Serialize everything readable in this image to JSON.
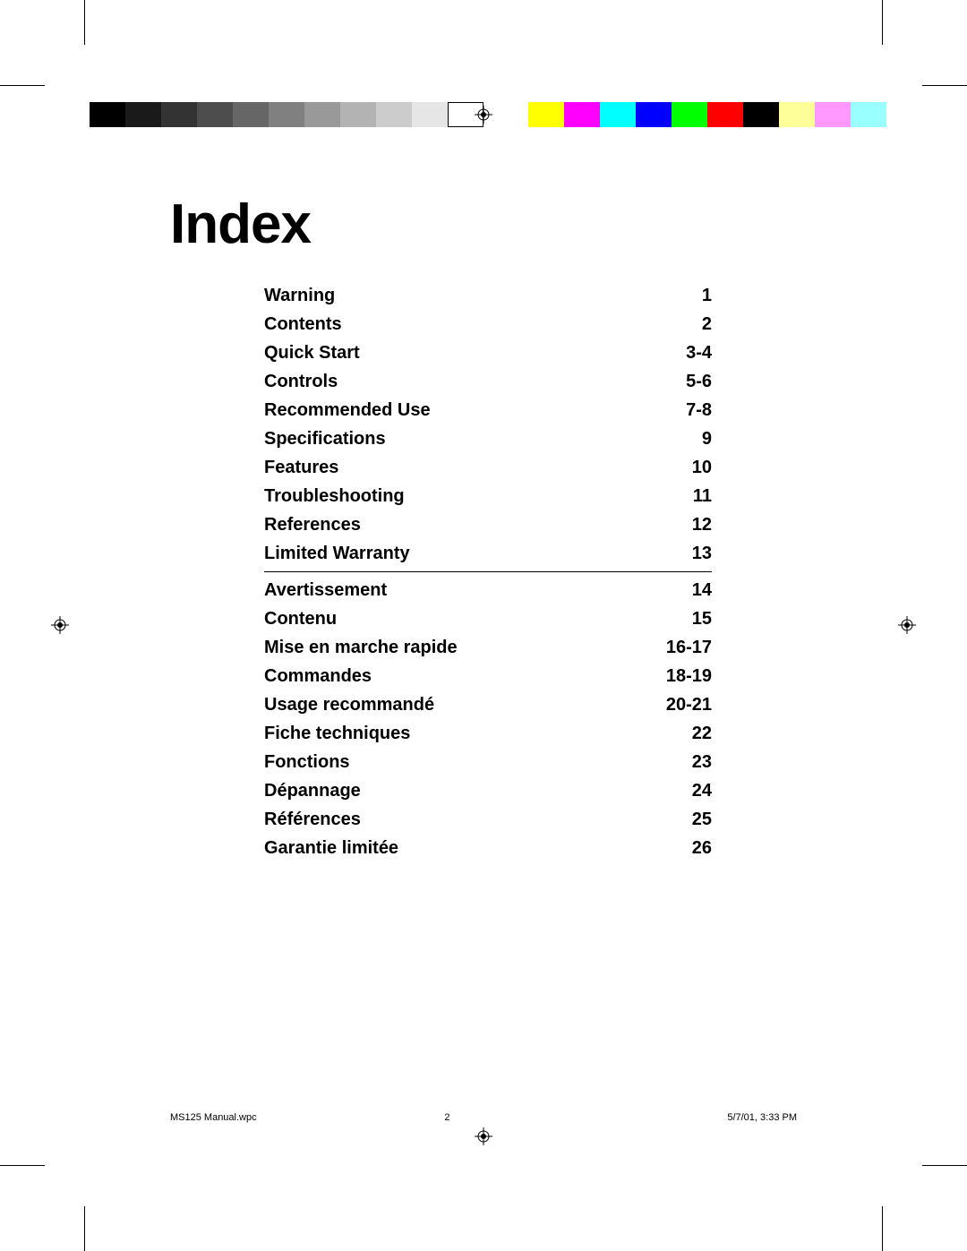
{
  "title": "Index",
  "gray_swatches": [
    "#000000",
    "#1a1a1a",
    "#333333",
    "#4d4d4d",
    "#666666",
    "#808080",
    "#999999",
    "#b3b3b3",
    "#cccccc",
    "#e6e6e6",
    "#ffffff"
  ],
  "color_swatches": [
    "#ffff00",
    "#ff00ff",
    "#00ffff",
    "#0000ff",
    "#00ff00",
    "#ff0000",
    "#000000",
    "#ffff99",
    "#ff99ff",
    "#99ffff"
  ],
  "sections": [
    {
      "entries": [
        {
          "label": "Warning",
          "page": "1"
        },
        {
          "label": "Contents",
          "page": "2"
        },
        {
          "label": "Quick Start",
          "page": "3-4"
        },
        {
          "label": "Controls",
          "page": "5-6"
        },
        {
          "label": "Recommended Use",
          "page": "7-8"
        },
        {
          "label": "Specifications",
          "page": "9"
        },
        {
          "label": "Features",
          "page": "10"
        },
        {
          "label": "Troubleshooting",
          "page": "11"
        },
        {
          "label": "References",
          "page": "12"
        },
        {
          "label": "Limited Warranty",
          "page": "13"
        }
      ]
    },
    {
      "entries": [
        {
          "label": "Avertissement",
          "page": "14"
        },
        {
          "label": "Contenu",
          "page": "15"
        },
        {
          "label": "Mise en marche rapide",
          "page": "16-17"
        },
        {
          "label": "Commandes",
          "page": "18-19"
        },
        {
          "label": "Usage recommandé",
          "page": "20-21"
        },
        {
          "label": "Fiche techniques",
          "page": "22"
        },
        {
          "label": "Fonctions",
          "page": "23"
        },
        {
          "label": "Dépannage",
          "page": "24"
        },
        {
          "label": "Références",
          "page": "25"
        },
        {
          "label": "Garantie limitée",
          "page": "26"
        }
      ]
    }
  ],
  "footer": {
    "filename": "MS125 Manual.wpc",
    "page_num": "2",
    "datetime": "5/7/01, 3:33 PM"
  },
  "styling": {
    "page_bg": "#ffffff",
    "text_color": "#000000",
    "title_fontsize": 62,
    "entry_fontsize": 20,
    "footer_fontsize": 11,
    "gray_swatch_border": "#000000"
  }
}
